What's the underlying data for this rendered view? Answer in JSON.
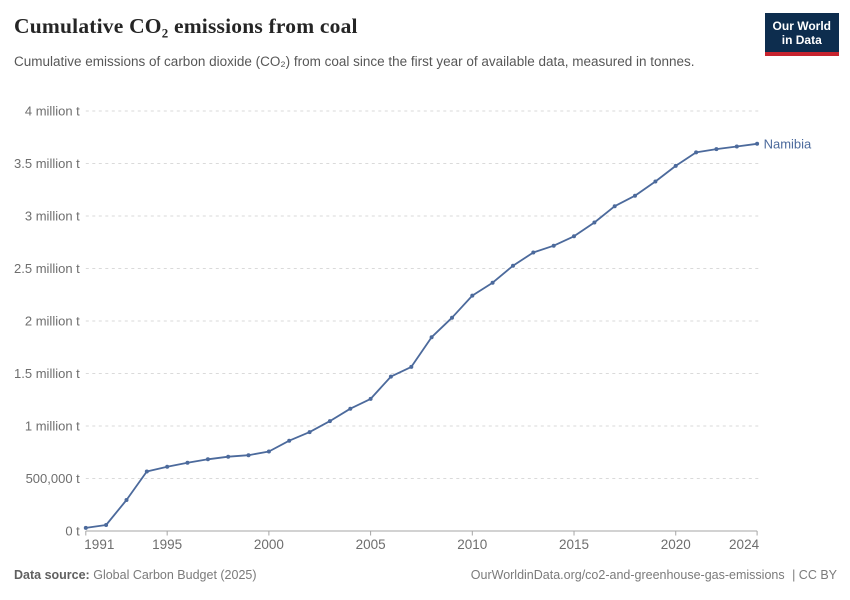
{
  "header": {
    "title": "Cumulative CO₂ emissions from coal",
    "subtitle": "Cumulative emissions of carbon dioxide (CO₂) from coal since the first year of available data, measured in tonnes.",
    "logo": {
      "line1": "Our World",
      "line2": "in Data"
    }
  },
  "chart_data": {
    "type": "line",
    "title": "Cumulative CO₂ emissions from coal",
    "xlabel": "",
    "ylabel": "",
    "unit": "tonnes",
    "grid": "horizontal-dashed",
    "legend_position": "end-of-line-label",
    "xlim": [
      1991,
      2024
    ],
    "ylim": [
      0,
      4000000
    ],
    "x": [
      1991,
      1992,
      1993,
      1994,
      1995,
      1996,
      1997,
      1998,
      1999,
      2000,
      2001,
      2002,
      2003,
      2004,
      2005,
      2006,
      2007,
      2008,
      2009,
      2010,
      2011,
      2012,
      2013,
      2014,
      2015,
      2016,
      2017,
      2018,
      2019,
      2020,
      2021,
      2022,
      2023,
      2024
    ],
    "series": [
      {
        "name": "Namibia",
        "color": "#4C6A9C",
        "values": [
          30000,
          57000,
          295000,
          567000,
          612000,
          650000,
          683000,
          708000,
          722000,
          757000,
          860000,
          942000,
          1047000,
          1165000,
          1258000,
          1470000,
          1563000,
          1846000,
          2031000,
          2242000,
          2365000,
          2527000,
          2652000,
          2717000,
          2807000,
          2938000,
          3093000,
          3193000,
          3329000,
          3477000,
          3606000,
          3637000,
          3662000,
          3688000
        ]
      }
    ],
    "x_ticks": [
      {
        "value": 1991,
        "label": "1991"
      },
      {
        "value": 1995,
        "label": "1995"
      },
      {
        "value": 2000,
        "label": "2000"
      },
      {
        "value": 2005,
        "label": "2005"
      },
      {
        "value": 2010,
        "label": "2010"
      },
      {
        "value": 2015,
        "label": "2015"
      },
      {
        "value": 2020,
        "label": "2020"
      },
      {
        "value": 2024,
        "label": "2024"
      }
    ],
    "y_ticks": [
      {
        "value": 0,
        "label": "0 t"
      },
      {
        "value": 500000,
        "label": "500,000 t"
      },
      {
        "value": 1000000,
        "label": "1 million t"
      },
      {
        "value": 1500000,
        "label": "1.5 million t"
      },
      {
        "value": 2000000,
        "label": "2 million t"
      },
      {
        "value": 2500000,
        "label": "2.5 million t"
      },
      {
        "value": 3000000,
        "label": "3 million t"
      },
      {
        "value": 3500000,
        "label": "3.5 million t"
      },
      {
        "value": 4000000,
        "label": "4 million t"
      }
    ],
    "colors": {
      "line": "#4C6A9C",
      "gridline": "#dadada",
      "axis": "#a5a5a5",
      "tick_label": "#6e6e6e"
    }
  },
  "footer": {
    "source_label": "Data source:",
    "source_value": "Global Carbon Budget (2025)",
    "right": {
      "link": "OurWorldinData.org/co2-and-greenhouse-gas-emissions",
      "license": "| CC BY"
    }
  }
}
